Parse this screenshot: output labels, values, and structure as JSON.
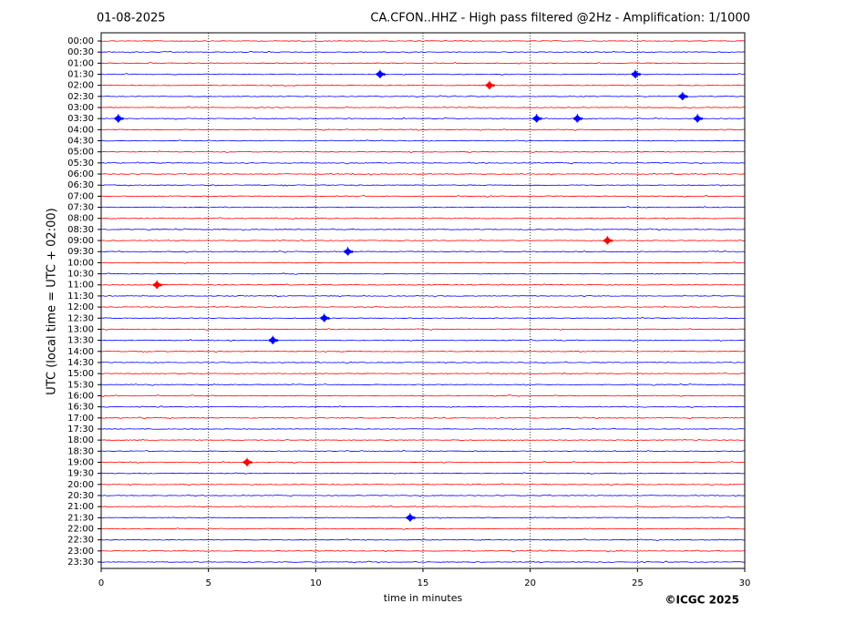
{
  "chart_data": {
    "type": "helicorder",
    "title_left": "01-08-2025",
    "title": "CA.CFON..HHZ - High pass filtered @2Hz - Amplification: 1/1000",
    "y_label": "UTC (local time = UTC + 02:00)",
    "x_label": "time in minutes",
    "credit": "©ICGC 2025",
    "categories": [
      "00:00",
      "00:30",
      "01:00",
      "01:30",
      "02:00",
      "02:30",
      "03:00",
      "03:30",
      "04:00",
      "04:30",
      "05:00",
      "05:30",
      "06:00",
      "06:30",
      "07:00",
      "07:30",
      "08:00",
      "08:30",
      "09:00",
      "09:30",
      "10:00",
      "10:30",
      "11:00",
      "11:30",
      "12:00",
      "12:30",
      "13:00",
      "13:30",
      "14:00",
      "14:30",
      "15:00",
      "15:30",
      "16:00",
      "16:30",
      "17:00",
      "17:30",
      "18:00",
      "18:30",
      "19:00",
      "19:30",
      "20:00",
      "20:30",
      "21:00",
      "21:30",
      "22:00",
      "22:30",
      "23:00",
      "23:30"
    ],
    "colors": [
      "#ff0000",
      "#0000ff"
    ],
    "xlim": [
      0,
      30
    ],
    "xticks": [
      0,
      5,
      10,
      15,
      20,
      25,
      30
    ],
    "grid": true,
    "events": [
      {
        "time": "01:30",
        "minute": 13.0
      },
      {
        "time": "01:30",
        "minute": 24.9
      },
      {
        "time": "02:00",
        "minute": 18.1
      },
      {
        "time": "02:30",
        "minute": 27.1
      },
      {
        "time": "03:30",
        "minute": 0.8
      },
      {
        "time": "03:30",
        "minute": 20.3
      },
      {
        "time": "03:30",
        "minute": 22.2
      },
      {
        "time": "03:30",
        "minute": 27.8
      },
      {
        "time": "09:00",
        "minute": 23.6
      },
      {
        "time": "09:30",
        "minute": 11.5
      },
      {
        "time": "11:00",
        "minute": 2.6
      },
      {
        "time": "12:30",
        "minute": 10.4
      },
      {
        "time": "13:30",
        "minute": 8.0
      },
      {
        "time": "19:00",
        "minute": 6.8
      },
      {
        "time": "21:30",
        "minute": 14.4
      }
    ]
  }
}
